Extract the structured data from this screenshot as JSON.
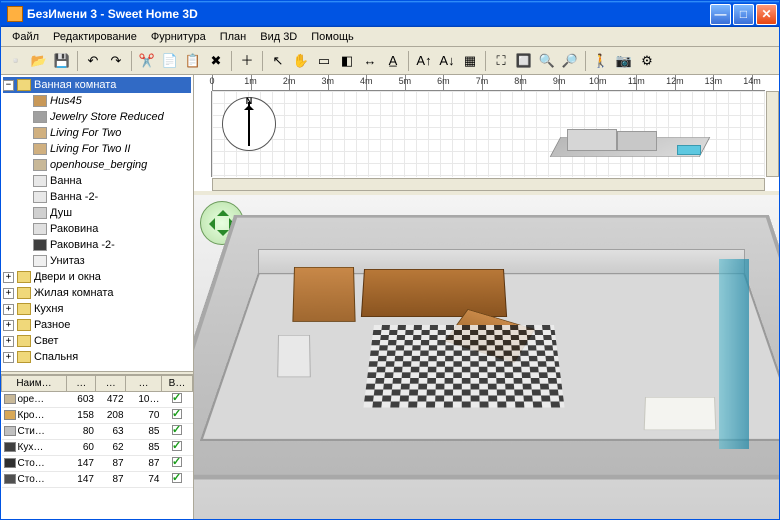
{
  "window": {
    "title": "БезИмени 3 - Sweet Home 3D"
  },
  "menu": {
    "items": [
      "Файл",
      "Редактирование",
      "Фурнитура",
      "План",
      "Вид 3D",
      "Помощь"
    ]
  },
  "toolbar": {
    "groups": [
      [
        "new",
        "open",
        "save"
      ],
      [
        "undo",
        "redo"
      ],
      [
        "cut",
        "copy",
        "paste",
        "delete"
      ],
      [
        "add-furniture"
      ],
      [
        "pointer",
        "pan",
        "wall",
        "room",
        "dimension",
        "text"
      ],
      [
        "text-bigger",
        "text-smaller",
        "import-bg"
      ],
      [
        "zoom-fit",
        "zoom-box",
        "zoom-in",
        "zoom-out"
      ],
      [
        "camera-3d",
        "photo",
        "preferences"
      ]
    ]
  },
  "tree": {
    "root": {
      "label": "Ванная комната",
      "expanded": true,
      "children": [
        {
          "label": "Hus45",
          "italic": true,
          "icon": "#c89858"
        },
        {
          "label": "Jewelry Store Reduced",
          "italic": true,
          "icon": "#a0a0a0"
        },
        {
          "label": "Living For Two",
          "italic": true,
          "icon": "#d0b080"
        },
        {
          "label": "Living For Two II",
          "italic": true,
          "icon": "#d0b080"
        },
        {
          "label": "openhouse_berging",
          "italic": true,
          "icon": "#c8b898"
        },
        {
          "label": "Ванна",
          "italic": false,
          "icon": "#e8e8e8"
        },
        {
          "label": "Ванна -2-",
          "italic": false,
          "icon": "#e8e8e8"
        },
        {
          "label": "Душ",
          "italic": false,
          "icon": "#d0d0d0"
        },
        {
          "label": "Раковина",
          "italic": false,
          "icon": "#e0e0e0"
        },
        {
          "label": "Раковина -2-",
          "italic": false,
          "icon": "#404040"
        },
        {
          "label": "Унитаз",
          "italic": false,
          "icon": "#f0f0f0"
        }
      ]
    },
    "siblings": [
      {
        "label": "Двери и окна"
      },
      {
        "label": "Жилая комната"
      },
      {
        "label": "Кухня"
      },
      {
        "label": "Разное"
      },
      {
        "label": "Свет"
      },
      {
        "label": "Спальня"
      }
    ]
  },
  "furnitureTable": {
    "columns": [
      "Наим…",
      "…",
      "…",
      "…",
      "В…"
    ],
    "rows": [
      {
        "name": "ope…",
        "c1": "603",
        "c2": "472",
        "c3": "10…",
        "vis": true,
        "icon": "#c8b898"
      },
      {
        "name": "Кро…",
        "c1": "158",
        "c2": "208",
        "c3": "70",
        "vis": true,
        "icon": "#d8a858"
      },
      {
        "name": "Сти…",
        "c1": "80",
        "c2": "63",
        "c3": "85",
        "vis": true,
        "icon": "#c0c0c0"
      },
      {
        "name": "Кух…",
        "c1": "60",
        "c2": "62",
        "c3": "85",
        "vis": true,
        "icon": "#404040"
      },
      {
        "name": "Сто…",
        "c1": "147",
        "c2": "87",
        "c3": "87",
        "vis": true,
        "icon": "#303030"
      },
      {
        "name": "Сто…",
        "c1": "147",
        "c2": "87",
        "c3": "74",
        "vis": true,
        "icon": "#505050"
      }
    ]
  },
  "plan": {
    "ruler": {
      "origin_label": "0",
      "unit": "m",
      "ticks": [
        0,
        1,
        2,
        3,
        4,
        5,
        6,
        7,
        8,
        9,
        10,
        11,
        12,
        13,
        14
      ]
    }
  },
  "colors": {
    "titlebar": "#0054e3",
    "menu_bg": "#ece9d8",
    "accent": "#316ac5"
  }
}
